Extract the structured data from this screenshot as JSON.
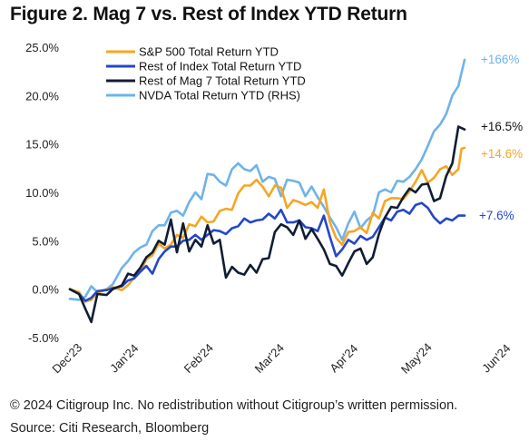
{
  "title": "Figure 2. Mag 7 vs. Rest of Index YTD Return",
  "footer": {
    "copyright": "© 2024 Citigroup Inc. No redistribution without Citigroup’s written permission.",
    "source": "Source: Citi Research, Bloomberg"
  },
  "chart_data": {
    "type": "line",
    "x_ticks": [
      "Dec'23",
      "Jan'24",
      "Feb'24",
      "Mar'24",
      "Apr'24",
      "May'24",
      "Jun'24"
    ],
    "y_ticks": [
      "25.0%",
      "20.0%",
      "15.0%",
      "10.0%",
      "5.0%",
      "0.0%",
      "-5.0%"
    ],
    "ylim": [
      -5,
      25
    ],
    "grid": false,
    "legend": "top-center",
    "series": [
      {
        "name": "S&P 500 Total Return YTD",
        "color": "#f5a623",
        "end_label": "+14.6%",
        "values": [
          [
            0,
            0.0
          ],
          [
            3,
            -0.3
          ],
          [
            5,
            -1.3
          ],
          [
            7,
            -1.1
          ],
          [
            9,
            -0.4
          ],
          [
            12,
            0.0
          ],
          [
            14,
            0.2
          ],
          [
            17,
            -0.1
          ],
          [
            19,
            0.4
          ],
          [
            21,
            1.2
          ],
          [
            23,
            1.8
          ],
          [
            25,
            3.1
          ],
          [
            27,
            3.5
          ],
          [
            29,
            4.7
          ],
          [
            31,
            4.2
          ],
          [
            33,
            4.6
          ],
          [
            35,
            5.6
          ],
          [
            37,
            5.3
          ],
          [
            39,
            6.7
          ],
          [
            41,
            6.5
          ],
          [
            43,
            7.5
          ],
          [
            45,
            6.9
          ],
          [
            47,
            7.0
          ],
          [
            49,
            8.1
          ],
          [
            51,
            8.3
          ],
          [
            53,
            8.2
          ],
          [
            55,
            9.9
          ],
          [
            57,
            10.7
          ],
          [
            59,
            10.7
          ],
          [
            61,
            11.3
          ],
          [
            63,
            10.6
          ],
          [
            65,
            9.6
          ],
          [
            67,
            10.7
          ],
          [
            69,
            10.5
          ],
          [
            71,
            8.4
          ],
          [
            73,
            9.2
          ],
          [
            75,
            9.0
          ],
          [
            77,
            8.7
          ],
          [
            79,
            9.0
          ],
          [
            81,
            8.4
          ],
          [
            83,
            10.3
          ],
          [
            85,
            6.9
          ],
          [
            87,
            5.3
          ],
          [
            89,
            4.6
          ],
          [
            91,
            5.9
          ],
          [
            93,
            6.0
          ],
          [
            95,
            6.4
          ],
          [
            97,
            5.8
          ],
          [
            99,
            7.9
          ],
          [
            101,
            7.3
          ],
          [
            103,
            9.1
          ],
          [
            105,
            9.4
          ],
          [
            107,
            9.4
          ],
          [
            109,
            9.3
          ],
          [
            111,
            10.1
          ],
          [
            113,
            11.1
          ],
          [
            115,
            12.3
          ],
          [
            117,
            11.0
          ],
          [
            119,
            11.5
          ],
          [
            121,
            12.4
          ],
          [
            123,
            12.7
          ],
          [
            125,
            11.8
          ],
          [
            127,
            12.4
          ],
          [
            128,
            14.5
          ],
          [
            129,
            14.6
          ]
        ]
      },
      {
        "name": "Rest of Index Total Return YTD",
        "color": "#2347c9",
        "end_label": "+7.6%",
        "values": [
          [
            0,
            0.0
          ],
          [
            3,
            -0.5
          ],
          [
            5,
            -1.2
          ],
          [
            7,
            -0.9
          ],
          [
            9,
            -0.2
          ],
          [
            12,
            -0.1
          ],
          [
            14,
            0.1
          ],
          [
            17,
            0.3
          ],
          [
            19,
            0.9
          ],
          [
            21,
            1.1
          ],
          [
            23,
            1.8
          ],
          [
            25,
            2.4
          ],
          [
            27,
            1.6
          ],
          [
            29,
            3.1
          ],
          [
            31,
            3.9
          ],
          [
            33,
            4.4
          ],
          [
            35,
            4.4
          ],
          [
            37,
            5.0
          ],
          [
            39,
            5.1
          ],
          [
            41,
            5.6
          ],
          [
            43,
            5.1
          ],
          [
            45,
            5.6
          ],
          [
            47,
            6.1
          ],
          [
            49,
            6.0
          ],
          [
            51,
            5.7
          ],
          [
            53,
            6.3
          ],
          [
            55,
            6.5
          ],
          [
            57,
            7.3
          ],
          [
            59,
            6.9
          ],
          [
            61,
            7.1
          ],
          [
            63,
            7.2
          ],
          [
            65,
            7.8
          ],
          [
            67,
            7.3
          ],
          [
            69,
            8.2
          ],
          [
            71,
            6.9
          ],
          [
            73,
            6.9
          ],
          [
            75,
            7.1
          ],
          [
            77,
            6.4
          ],
          [
            79,
            6.3
          ],
          [
            81,
            6.0
          ],
          [
            83,
            7.6
          ],
          [
            85,
            5.4
          ],
          [
            87,
            3.4
          ],
          [
            89,
            4.1
          ],
          [
            91,
            5.1
          ],
          [
            93,
            4.7
          ],
          [
            95,
            5.5
          ],
          [
            97,
            5.1
          ],
          [
            99,
            5.4
          ],
          [
            101,
            6.4
          ],
          [
            103,
            7.4
          ],
          [
            105,
            7.1
          ],
          [
            107,
            8.0
          ],
          [
            109,
            8.2
          ],
          [
            111,
            7.8
          ],
          [
            113,
            8.7
          ],
          [
            115,
            8.9
          ],
          [
            117,
            8.4
          ],
          [
            119,
            7.4
          ],
          [
            121,
            6.8
          ],
          [
            123,
            7.3
          ],
          [
            125,
            7.1
          ],
          [
            127,
            7.6
          ],
          [
            129,
            7.6
          ]
        ]
      },
      {
        "name": "Rest of Mag 7 Total Return YTD",
        "color": "#111d33",
        "end_label": "+16.5%",
        "values": [
          [
            0,
            0.0
          ],
          [
            3,
            -0.5
          ],
          [
            5,
            -2.0
          ],
          [
            7,
            -3.4
          ],
          [
            9,
            -0.5
          ],
          [
            12,
            -0.6
          ],
          [
            14,
            0.0
          ],
          [
            17,
            0.4
          ],
          [
            19,
            1.6
          ],
          [
            21,
            1.4
          ],
          [
            23,
            2.2
          ],
          [
            25,
            3.3
          ],
          [
            27,
            3.8
          ],
          [
            29,
            5.0
          ],
          [
            31,
            4.6
          ],
          [
            33,
            7.2
          ],
          [
            35,
            3.8
          ],
          [
            37,
            6.8
          ],
          [
            39,
            3.9
          ],
          [
            41,
            5.1
          ],
          [
            43,
            4.4
          ],
          [
            45,
            6.6
          ],
          [
            47,
            4.7
          ],
          [
            49,
            5.1
          ],
          [
            51,
            1.2
          ],
          [
            53,
            2.3
          ],
          [
            55,
            1.7
          ],
          [
            57,
            1.5
          ],
          [
            59,
            2.5
          ],
          [
            61,
            1.7
          ],
          [
            63,
            3.1
          ],
          [
            65,
            3.2
          ],
          [
            67,
            5.9
          ],
          [
            69,
            6.7
          ],
          [
            71,
            6.4
          ],
          [
            73,
            5.6
          ],
          [
            75,
            7.1
          ],
          [
            77,
            5.2
          ],
          [
            79,
            6.2
          ],
          [
            81,
            5.2
          ],
          [
            83,
            4.1
          ],
          [
            85,
            2.6
          ],
          [
            87,
            2.4
          ],
          [
            89,
            1.4
          ],
          [
            91,
            2.7
          ],
          [
            93,
            3.9
          ],
          [
            95,
            4.2
          ],
          [
            97,
            2.6
          ],
          [
            99,
            3.3
          ],
          [
            101,
            5.7
          ],
          [
            103,
            7.4
          ],
          [
            105,
            8.5
          ],
          [
            107,
            8.4
          ],
          [
            109,
            9.5
          ],
          [
            111,
            10.4
          ],
          [
            113,
            10.0
          ],
          [
            115,
            10.8
          ],
          [
            117,
            10.9
          ],
          [
            119,
            9.1
          ],
          [
            121,
            9.4
          ],
          [
            123,
            11.7
          ],
          [
            125,
            13.0
          ],
          [
            127,
            16.8
          ],
          [
            129,
            16.5
          ]
        ]
      },
      {
        "name": "NVDA Total Return YTD (RHS)",
        "color": "#6fb3ea",
        "end_label": "+166%",
        "values": [
          [
            0,
            -1.0
          ],
          [
            3,
            -1.1
          ],
          [
            5,
            -0.8
          ],
          [
            7,
            0.3
          ],
          [
            9,
            -0.3
          ],
          [
            12,
            0.0
          ],
          [
            14,
            0.5
          ],
          [
            17,
            2.2
          ],
          [
            19,
            2.9
          ],
          [
            21,
            3.8
          ],
          [
            23,
            4.3
          ],
          [
            25,
            4.6
          ],
          [
            27,
            6.0
          ],
          [
            29,
            6.6
          ],
          [
            31,
            6.6
          ],
          [
            33,
            7.9
          ],
          [
            35,
            8.1
          ],
          [
            37,
            7.6
          ],
          [
            39,
            9.0
          ],
          [
            41,
            10.0
          ],
          [
            43,
            9.3
          ],
          [
            45,
            11.9
          ],
          [
            47,
            11.8
          ],
          [
            49,
            11.1
          ],
          [
            51,
            10.7
          ],
          [
            53,
            12.4
          ],
          [
            55,
            13.0
          ],
          [
            57,
            12.4
          ],
          [
            59,
            12.2
          ],
          [
            61,
            12.8
          ],
          [
            63,
            11.1
          ],
          [
            65,
            11.6
          ],
          [
            67,
            11.4
          ],
          [
            69,
            9.6
          ],
          [
            71,
            11.3
          ],
          [
            73,
            11.2
          ],
          [
            75,
            11.0
          ],
          [
            77,
            9.6
          ],
          [
            79,
            10.6
          ],
          [
            81,
            9.5
          ],
          [
            83,
            8.5
          ],
          [
            85,
            7.4
          ],
          [
            87,
            6.4
          ],
          [
            89,
            5.1
          ],
          [
            91,
            6.8
          ],
          [
            93,
            8.0
          ],
          [
            95,
            6.3
          ],
          [
            97,
            7.1
          ],
          [
            99,
            7.6
          ],
          [
            101,
            10.0
          ],
          [
            103,
            10.3
          ],
          [
            105,
            10.0
          ],
          [
            107,
            11.2
          ],
          [
            109,
            11.1
          ],
          [
            111,
            11.6
          ],
          [
            113,
            12.4
          ],
          [
            115,
            13.4
          ],
          [
            117,
            14.8
          ],
          [
            119,
            16.3
          ],
          [
            121,
            17.0
          ],
          [
            123,
            18.1
          ],
          [
            125,
            20.0
          ],
          [
            127,
            21.0
          ],
          [
            129,
            23.7
          ]
        ]
      }
    ]
  }
}
